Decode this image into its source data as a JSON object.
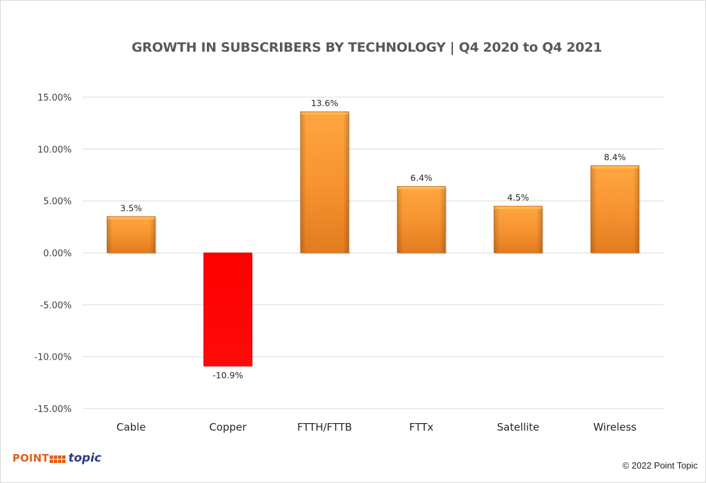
{
  "chart_data": {
    "type": "bar",
    "title": "GROWTH IN SUBSCRIBERS BY TECHNOLOGY  |  Q4 2020 to Q4 2021",
    "xlabel": "",
    "ylabel": "",
    "categories": [
      "Cable",
      "Copper",
      "FTTH/FTTB",
      "FTTx",
      "Satellite",
      "Wireless"
    ],
    "values": [
      3.5,
      -10.9,
      13.6,
      6.4,
      4.5,
      8.4
    ],
    "value_labels": [
      "3.5%",
      "-10.9%",
      "13.6%",
      "6.4%",
      "4.5%",
      "8.4%"
    ],
    "ylim": [
      -15,
      15
    ],
    "yticks": [
      15,
      10,
      5,
      0,
      -5,
      -10,
      -15
    ],
    "ytick_labels": [
      "15.00%",
      "10.00%",
      "5.00%",
      "0.00%",
      "-5.00%",
      "-10.00%",
      "-15.00%"
    ],
    "grid": true,
    "legend": "none",
    "colors": {
      "positive": "#f79431",
      "negative": "#ff0000"
    }
  },
  "branding": {
    "logo_point": "POINT",
    "logo_topic": "topic",
    "copyright": "© 2022 Point Topic"
  }
}
